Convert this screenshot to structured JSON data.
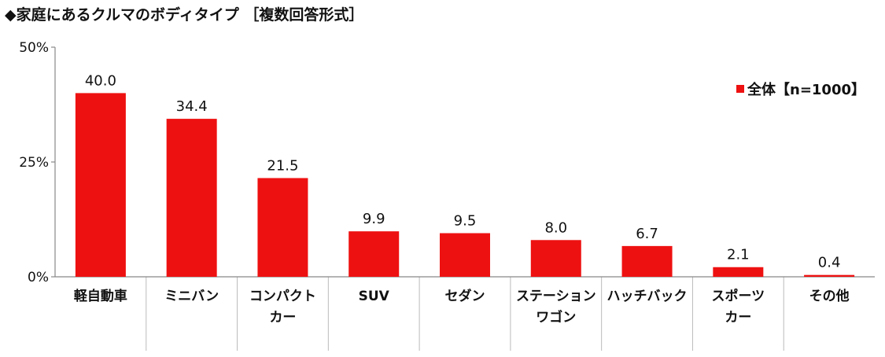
{
  "title": "◆家庭にあるクルマのボディタイプ ［複数回答形式］",
  "colors": {
    "bar": "#ee1111",
    "axis": "#888888",
    "divider": "#bbbbbb"
  },
  "chart_data": {
    "type": "bar",
    "title": "◆家庭にあるクルマのボディタイプ ［複数回答形式］",
    "categories": [
      [
        "軽自動車"
      ],
      [
        "ミニバン"
      ],
      [
        "コンパクト",
        "カー"
      ],
      [
        "SUV"
      ],
      [
        "セダン"
      ],
      [
        "ステーション",
        "ワゴン"
      ],
      [
        "ハッチバック"
      ],
      [
        "スポーツ",
        "カー"
      ],
      [
        "その他"
      ]
    ],
    "series": [
      {
        "name": "全体【n=1000】",
        "values": [
          40.0,
          34.4,
          21.5,
          9.9,
          9.5,
          8.0,
          6.7,
          2.1,
          0.4
        ]
      }
    ],
    "data_labels": [
      "40.0",
      "34.4",
      "21.5",
      "9.9",
      "9.5",
      "8.0",
      "6.7",
      "2.1",
      "0.4"
    ],
    "yticks": [
      "0%",
      "25%",
      "50%"
    ],
    "ytick_values": [
      0,
      25,
      50
    ],
    "ylim": [
      0,
      50
    ],
    "grid": false,
    "legend_position": "top-right"
  }
}
